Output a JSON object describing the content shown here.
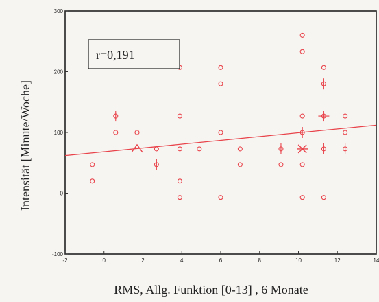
{
  "colors": {
    "marker": "#e8434a",
    "axis": "#333333",
    "frame": "#222222"
  },
  "chart_data": {
    "type": "scatter",
    "title": "",
    "xlabel": "RMS, Allg. Funktion [0-13] , 6 Monate",
    "ylabel": "Intensität [Minute/Woche]",
    "xlim": [
      -2,
      14
    ],
    "ylim": [
      -100,
      300
    ],
    "xticks": [
      "-2",
      "0",
      "2",
      "4",
      "6",
      "8",
      "10",
      "12",
      "14"
    ],
    "yticks": [
      "-100",
      "0",
      "100",
      "200",
      "300"
    ],
    "annotation": "r=0,191",
    "grid": false,
    "regression_line": {
      "x1": -2,
      "y1": 62,
      "x2": 14,
      "y2": 112
    },
    "points": [
      {
        "x": -0.6,
        "y": 47,
        "marker": "circle"
      },
      {
        "x": -0.6,
        "y": 20,
        "marker": "circle"
      },
      {
        "x": 0.6,
        "y": 127,
        "marker": "circle-vbar"
      },
      {
        "x": 0.6,
        "y": 100,
        "marker": "circle"
      },
      {
        "x": 1.7,
        "y": 100,
        "marker": "circle"
      },
      {
        "x": 1.7,
        "y": 73,
        "marker": "triangle"
      },
      {
        "x": 2.7,
        "y": 73,
        "marker": "circle"
      },
      {
        "x": 2.7,
        "y": 47,
        "marker": "circle-vbar"
      },
      {
        "x": 3.9,
        "y": 207,
        "marker": "circle"
      },
      {
        "x": 3.9,
        "y": 127,
        "marker": "circle"
      },
      {
        "x": 3.9,
        "y": 73,
        "marker": "circle"
      },
      {
        "x": 3.9,
        "y": 20,
        "marker": "circle"
      },
      {
        "x": 3.9,
        "y": -7,
        "marker": "circle"
      },
      {
        "x": 4.9,
        "y": 73,
        "marker": "circle"
      },
      {
        "x": 6.0,
        "y": 207,
        "marker": "circle"
      },
      {
        "x": 6.0,
        "y": 180,
        "marker": "circle"
      },
      {
        "x": 6.0,
        "y": 100,
        "marker": "circle"
      },
      {
        "x": 6.0,
        "y": -7,
        "marker": "circle"
      },
      {
        "x": 7.0,
        "y": 73,
        "marker": "circle"
      },
      {
        "x": 7.0,
        "y": 47,
        "marker": "circle"
      },
      {
        "x": 9.1,
        "y": 73,
        "marker": "circle-vbar"
      },
      {
        "x": 9.1,
        "y": 47,
        "marker": "circle"
      },
      {
        "x": 10.2,
        "y": 260,
        "marker": "circle"
      },
      {
        "x": 10.2,
        "y": 233,
        "marker": "circle"
      },
      {
        "x": 10.2,
        "y": 127,
        "marker": "circle"
      },
      {
        "x": 10.2,
        "y": 100,
        "marker": "circle-vbar"
      },
      {
        "x": 10.2,
        "y": 73,
        "marker": "asterisk"
      },
      {
        "x": 10.2,
        "y": 47,
        "marker": "circle"
      },
      {
        "x": 10.2,
        "y": -7,
        "marker": "circle"
      },
      {
        "x": 11.3,
        "y": 207,
        "marker": "circle"
      },
      {
        "x": 11.3,
        "y": 180,
        "marker": "circle-vbar"
      },
      {
        "x": 11.3,
        "y": 127,
        "marker": "circle-cross"
      },
      {
        "x": 11.3,
        "y": 73,
        "marker": "circle-vbar"
      },
      {
        "x": 11.3,
        "y": -7,
        "marker": "circle"
      },
      {
        "x": 12.4,
        "y": 127,
        "marker": "circle"
      },
      {
        "x": 12.4,
        "y": 100,
        "marker": "circle"
      },
      {
        "x": 12.4,
        "y": 73,
        "marker": "circle-vbar"
      }
    ]
  }
}
